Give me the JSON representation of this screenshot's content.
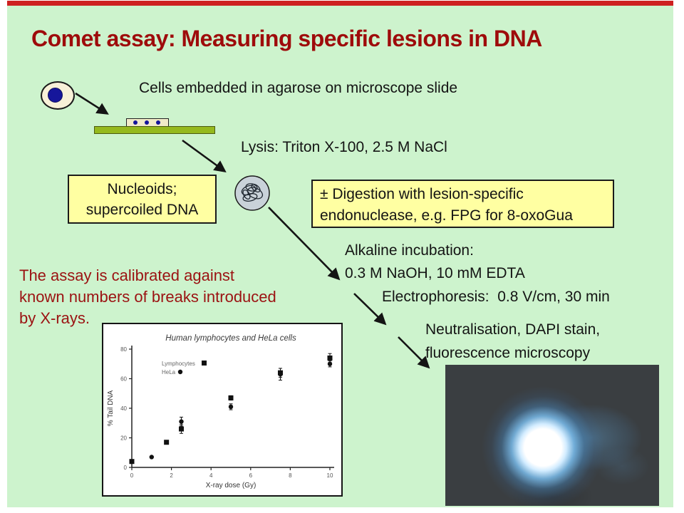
{
  "slide": {
    "title": "Comet assay: Measuring specific lesions in DNA",
    "steps": {
      "embed": "Cells embedded in agarose on microscope slide",
      "lysis": "Lysis: Triton X-100, 2.5 M NaCl",
      "alkaline_line1": "Alkaline incubation:",
      "alkaline_line2": "0.3 M NaOH, 10 mM EDTA",
      "electrophoresis": "Electrophoresis:  0.8 V/cm, 30 min",
      "neutralisation_line1": "Neutralisation, DAPI stain,",
      "neutralisation_line2": "fluorescence microscopy"
    },
    "boxes": {
      "nucleoids_line1": "Nucleoids;",
      "nucleoids_line2": "supercoiled DNA",
      "digestion_line1": "± Digestion with lesion-specific",
      "digestion_line2": "endonuclease, e.g. FPG for 8-oxoGua"
    },
    "calibration_note": {
      "line1": "The assay is calibrated against",
      "line2": "known numbers of breaks introduced",
      "line3": "by X-rays."
    },
    "colors": {
      "background": "#cdf3cd",
      "top_strip_red": "#ce2020",
      "title_red": "#9e0b0b",
      "box_yellow": "#ffffa2",
      "slide_bar_green": "#95b91d",
      "nucleus_blue": "#16169b"
    }
  },
  "chart_data": {
    "type": "scatter",
    "title": "Human lymphocytes and HeLa cells",
    "xlabel": "X-ray dose (Gy)",
    "ylabel": "% Tail DNA",
    "xlim": [
      0,
      10
    ],
    "ylim": [
      0,
      80
    ],
    "x_ticks": [
      0,
      2,
      4,
      6,
      8,
      10
    ],
    "y_ticks": [
      0,
      20,
      40,
      60,
      80
    ],
    "grid": false,
    "legend_position": "inside-upper-left",
    "series": [
      {
        "name": "Lymphocytes",
        "marker": "square",
        "x": [
          0,
          1.75,
          2.5,
          5,
          7.5,
          10
        ],
        "y": [
          4,
          17,
          26,
          47,
          64,
          74
        ],
        "yerr": [
          0,
          0,
          3,
          1.5,
          3,
          3
        ]
      },
      {
        "name": "HeLa",
        "marker": "circle",
        "x": [
          1,
          2.5,
          5,
          7.5,
          10
        ],
        "y": [
          7,
          31,
          41,
          63,
          70
        ],
        "yerr": [
          0,
          3,
          2,
          4,
          2
        ]
      }
    ]
  }
}
